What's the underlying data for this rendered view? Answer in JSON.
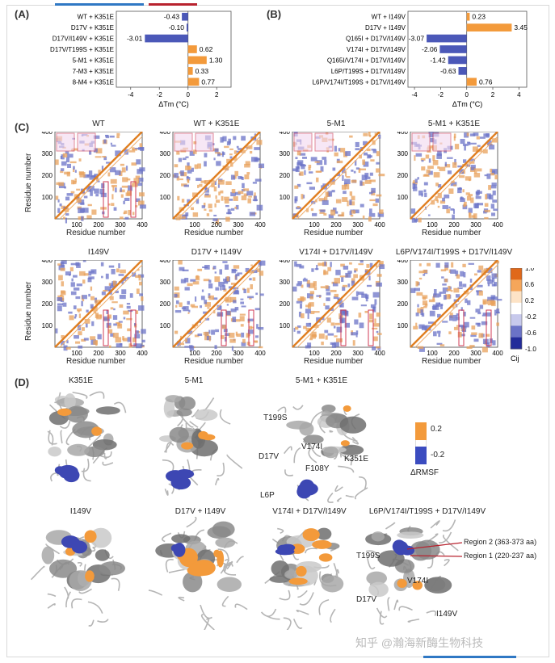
{
  "panel_labels": {
    "a": "(A)",
    "b": "(B)",
    "c": "(C)",
    "d": "(D)"
  },
  "colors": {
    "orange": "#f39a3b",
    "blue": "#4b58b8",
    "accent_blue": "#2f78c4",
    "accent_red": "#b8222e"
  },
  "chart_data": [
    {
      "type": "bar",
      "orientation": "horizontal",
      "categories": [
        "WT + K351E",
        "D17V + K351E",
        "D17V/I149V + K351E",
        "D17V/T199S + K351E",
        "5-M1 + K351E",
        "7-M3 + K351E",
        "8-M4 + K351E"
      ],
      "values": [
        -0.43,
        -0.1,
        -3.01,
        0.62,
        1.3,
        0.33,
        0.77
      ],
      "value_labels": [
        "-0.43",
        "-0.10",
        "-3.01",
        "0.62",
        "1.30",
        "0.33",
        "0.77"
      ],
      "xlim": [
        -5,
        3
      ],
      "xticks": [
        "-4",
        "-2",
        "0",
        "2"
      ],
      "xlabel": "ΔTm (°C)"
    },
    {
      "type": "bar",
      "orientation": "horizontal",
      "categories": [
        "WT + I149V",
        "D17V + I149V",
        "Q165I + D17V/I149V",
        "V174I + D17V/I149V",
        "Q165I/V174I + D17V/I149V",
        "L6P/T199S + D17V/I149V",
        "L6P/V174I/T199S + D17V/I149V"
      ],
      "values": [
        0.23,
        3.45,
        -3.07,
        -2.06,
        -1.42,
        -0.63,
        0.76
      ],
      "value_labels": [
        "0.23",
        "3.45",
        "-3.07",
        "-2.06",
        "-1.42",
        "-0.63",
        "0.76"
      ],
      "xlim": [
        -4.5,
        4.6
      ],
      "xticks": [
        "-4",
        "-2",
        "0",
        "2",
        "4"
      ],
      "xlabel": "ΔTm (°C)"
    }
  ],
  "contact_maps": {
    "titles": [
      "WT",
      "WT + K351E",
      "5-M1",
      "5-M1 + K351E",
      "I149V",
      "D17V + I149V",
      "V174I + D17V/I149V",
      "L6P/V174I/T199S + D17V/I149V"
    ],
    "ticks": [
      "100",
      "200",
      "300",
      "400"
    ],
    "ylabel": "Residue number",
    "xlabel": "Residue number",
    "colorbar_ticks": [
      "1.0",
      "0.6",
      "0.2",
      "-0.2",
      "-0.6",
      "-1.0"
    ],
    "colorbar_label": "Cij"
  },
  "structures": {
    "row1": [
      "K351E",
      "5-M1",
      "5-M1 + K351E"
    ],
    "row2": [
      "I149V",
      "D17V + I149V",
      "V174I + D17V/I149V",
      "L6P/V174I/T199S + D17V/I149V"
    ],
    "annotations_top": [
      "T199S",
      "D17V",
      "V174I",
      "F108Y",
      "K351E",
      "L6P"
    ],
    "annotations_bottom": [
      "T199S",
      "V174I",
      "D17V",
      "I149V",
      "Region 2 (363-373 aa)",
      "Region 1 (220-237 aa)"
    ],
    "legend_ticks": [
      "0.2",
      "-0.2"
    ],
    "legend_label": "ΔRMSF"
  },
  "watermark": "知乎 @瀚海新酶生物科技"
}
